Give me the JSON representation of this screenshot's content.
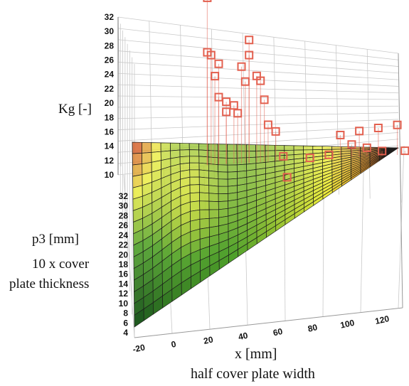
{
  "chart_data": {
    "type": "surface3d",
    "title": "",
    "axes": {
      "z": {
        "label": "Kg [-]",
        "ticks": [
          4,
          6,
          8,
          10,
          12,
          14,
          16,
          18,
          20,
          22,
          24,
          26,
          28,
          30,
          32
        ],
        "range": [
          4,
          32
        ]
      },
      "x": {
        "label": "x [mm]",
        "sublabel": "half cover plate width",
        "ticks": [
          -20,
          0,
          20,
          40,
          60,
          80,
          100,
          120
        ],
        "range": [
          -20,
          120
        ]
      },
      "y": {
        "label": "p3 [mm]",
        "sublabel_lines": [
          "10 x cover",
          "plate thickness"
        ]
      }
    },
    "colors": {
      "low": "#1f5a1f",
      "mid": "#4fa02a",
      "yellow": "#ecec3a",
      "high": "#c81a0e",
      "marker": "#e3604f"
    },
    "surface": {
      "description_values": "Kg as function of x (fitted surface)",
      "x": [
        -20,
        0,
        20,
        40,
        60,
        80,
        100,
        120
      ],
      "kg_at_min_p3": [
        5.5,
        7.5,
        8.5,
        9.5,
        10.5,
        11.5,
        12.5,
        13.5
      ],
      "kg_at_max_p3": [
        14,
        10.5,
        10,
        10,
        10.5,
        11.5,
        12.5,
        13.5
      ]
    },
    "scatter": {
      "points": [
        {
          "x": 0,
          "kg": 27.2
        },
        {
          "x": 0,
          "kg": 21.8
        },
        {
          "x": 2,
          "kg": 21.5
        },
        {
          "x": 6,
          "kg": 20.6
        },
        {
          "x": 4,
          "kg": 19.4
        },
        {
          "x": 6,
          "kg": 17.3
        },
        {
          "x": 10,
          "kg": 16.8
        },
        {
          "x": 10,
          "kg": 15.8
        },
        {
          "x": 14,
          "kg": 16.4
        },
        {
          "x": 16,
          "kg": 15.6
        },
        {
          "x": 18,
          "kg": 20.2
        },
        {
          "x": 22,
          "kg": 22.8
        },
        {
          "x": 22,
          "kg": 21.3
        },
        {
          "x": 20,
          "kg": 18.7
        },
        {
          "x": 26,
          "kg": 19.2
        },
        {
          "x": 28,
          "kg": 18.7
        },
        {
          "x": 30,
          "kg": 16.8
        },
        {
          "x": 32,
          "kg": 14.3
        },
        {
          "x": 36,
          "kg": 13.6
        },
        {
          "x": 40,
          "kg": 11.1
        },
        {
          "x": 42,
          "kg": 9.0
        },
        {
          "x": 54,
          "kg": 10.8
        },
        {
          "x": 64,
          "kg": 11.0
        },
        {
          "x": 70,
          "kg": 12.9
        },
        {
          "x": 76,
          "kg": 11.9
        },
        {
          "x": 80,
          "kg": 13.2
        },
        {
          "x": 84,
          "kg": 11.5
        },
        {
          "x": 90,
          "kg": 13.4
        },
        {
          "x": 92,
          "kg": 11.1
        },
        {
          "x": 100,
          "kg": 13.6
        },
        {
          "x": 104,
          "kg": 11.0
        }
      ]
    }
  }
}
